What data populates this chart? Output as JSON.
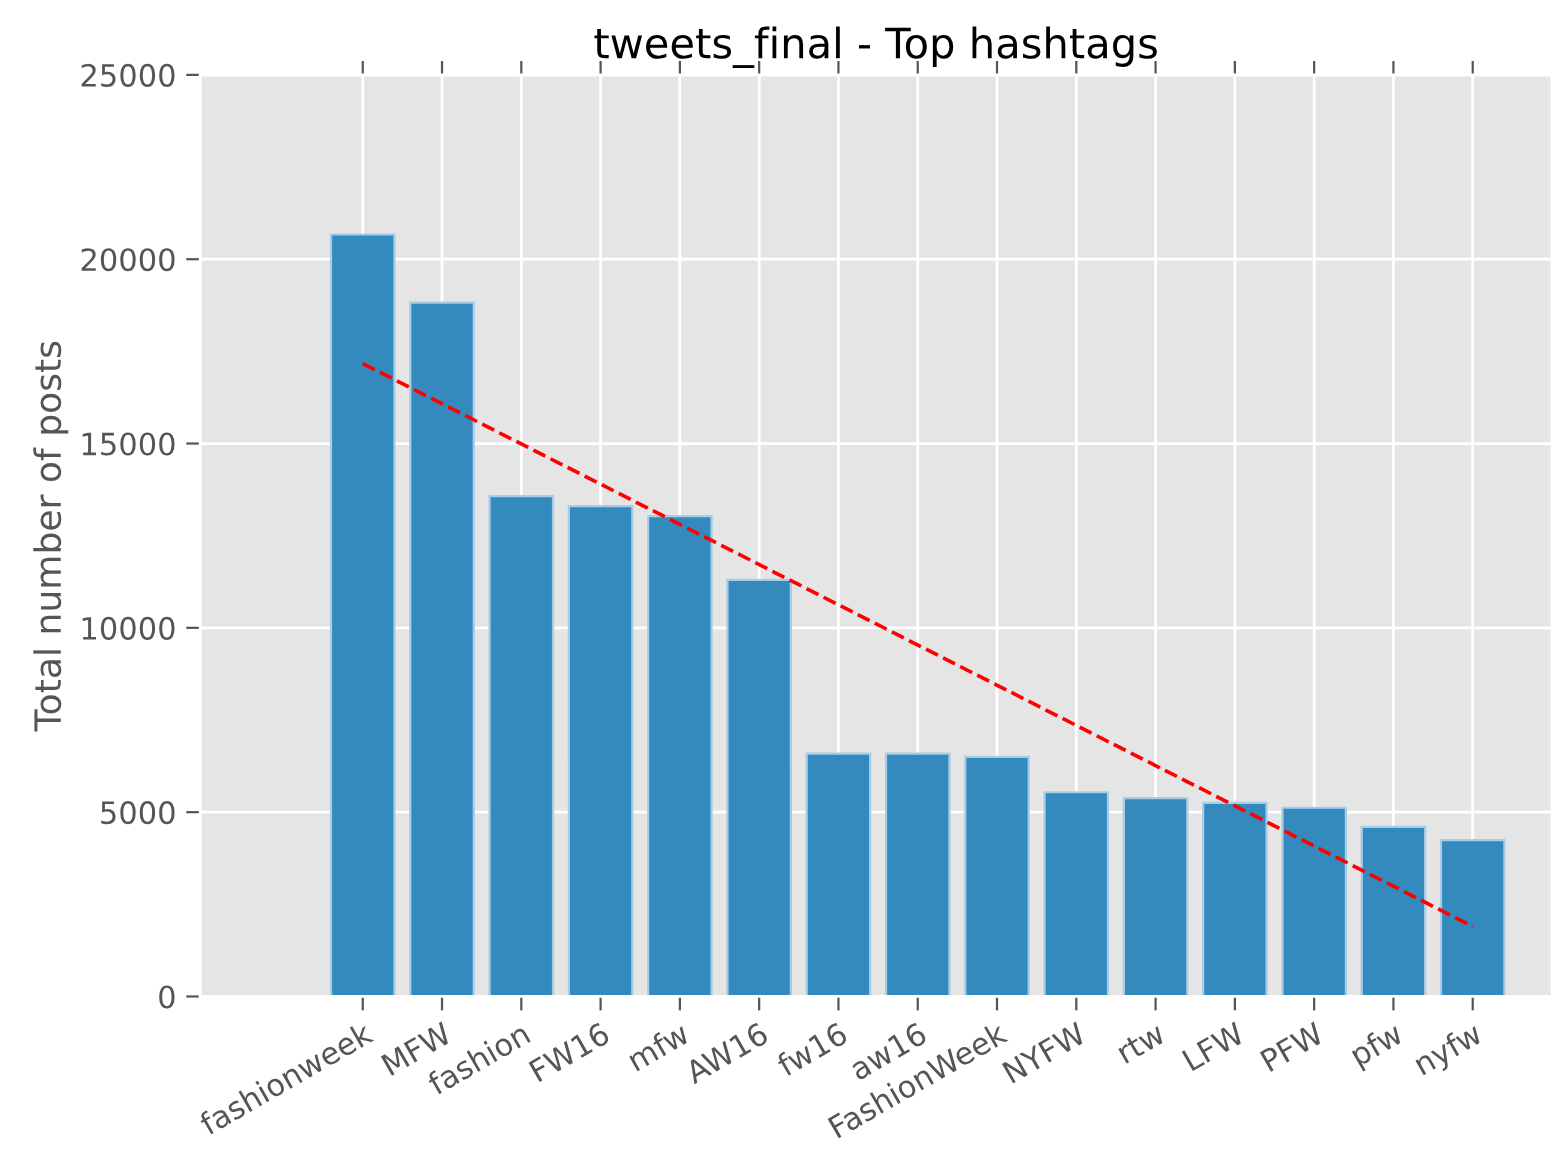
{
  "chart_data": {
    "type": "bar",
    "title": "tweets_final - Top hashtags",
    "ylabel": "Total number of posts",
    "categories": [
      "fashionweek",
      "MFW",
      "fashion",
      "FW16",
      "mfw",
      "AW16",
      "fw16",
      "aw16",
      "FashionWeek",
      "NYFW",
      "rtw",
      "LFW",
      "PFW",
      "pfw",
      "nyfw"
    ],
    "series": [
      {
        "color": "#348abd",
        "values": [
          20670,
          18820,
          13570,
          13300,
          13030,
          11300,
          6590,
          6590,
          6500,
          5540,
          5380,
          5250,
          5120,
          4600,
          4240
        ]
      },
      {
        "type": "line",
        "color": "#ff0000",
        "line_style": "dashed",
        "values": [
          17170,
          null,
          null,
          null,
          null,
          null,
          null,
          null,
          null,
          null,
          null,
          null,
          null,
          null,
          1900
        ]
      }
    ],
    "ylim": [
      0,
      25000
    ],
    "yticks": [
      0,
      5000,
      10000,
      15000,
      20000,
      25000
    ],
    "grid": true
  }
}
